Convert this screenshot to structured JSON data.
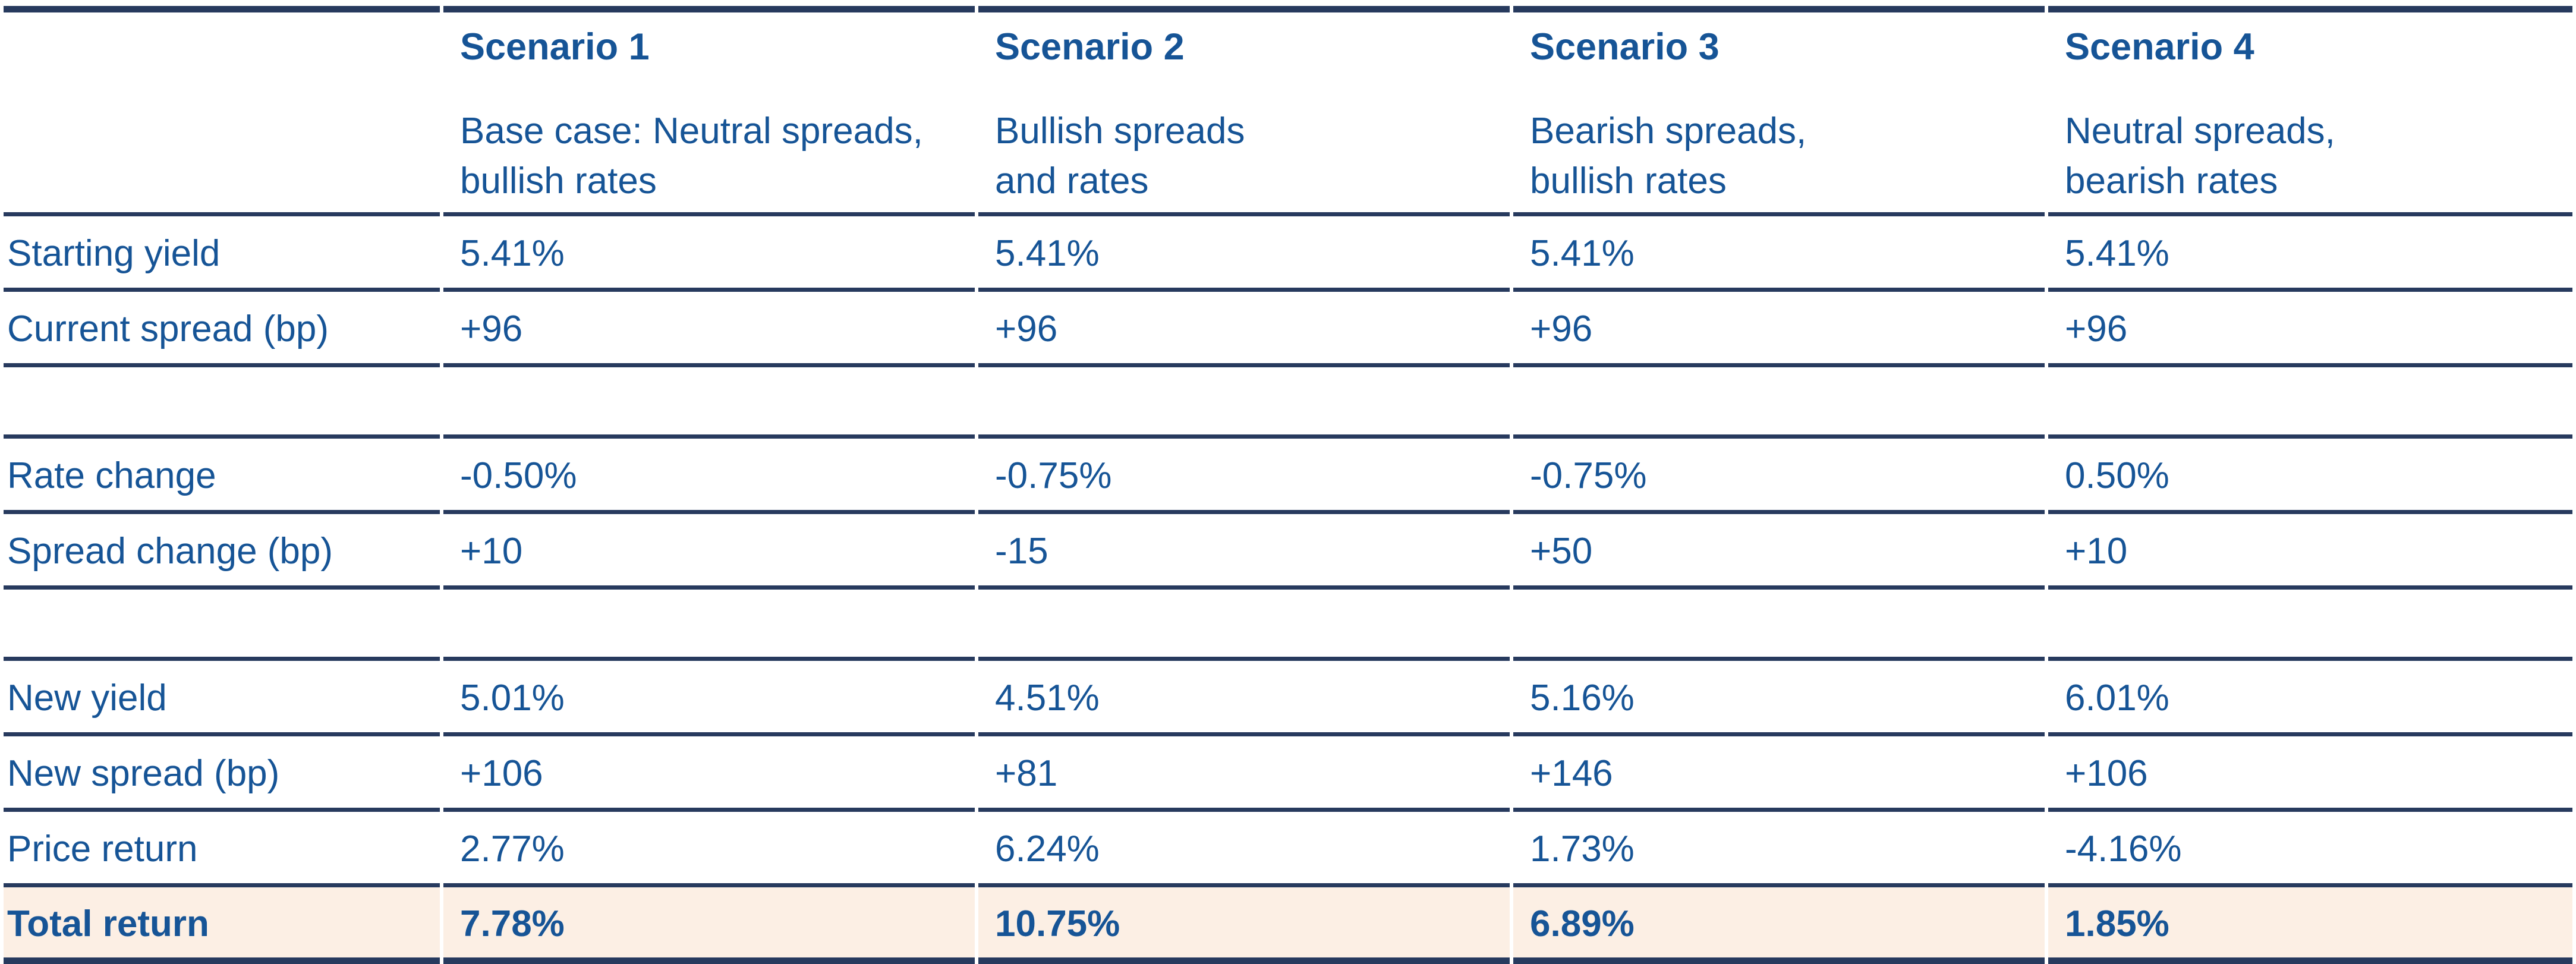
{
  "colors": {
    "rule_navy": "#273a5e",
    "text_blue": "#165496",
    "highlight_row_bg": "#fcefe4",
    "page_bg": "#ffffff"
  },
  "chart_data": {
    "type": "table",
    "title": "",
    "columns": [
      {
        "title": "",
        "desc1": "",
        "desc2": ""
      },
      {
        "title": "Scenario 1",
        "desc1": "Base case: Neutral spreads,",
        "desc2": "bullish rates"
      },
      {
        "title": "Scenario 2",
        "desc1": "Bullish spreads",
        "desc2": "and rates"
      },
      {
        "title": "Scenario 3",
        "desc1": "Bearish spreads,",
        "desc2": "bullish rates"
      },
      {
        "title": "Scenario 4",
        "desc1": "Neutral spreads,",
        "desc2": "bearish rates"
      }
    ],
    "rows": [
      {
        "label": "Starting yield",
        "values": [
          "5.41%",
          "5.41%",
          "5.41%",
          "5.41%"
        ]
      },
      {
        "label": "Current spread (bp)",
        "values": [
          "+96",
          "+96",
          "+96",
          "+96"
        ]
      },
      {
        "label": "Rate change",
        "values": [
          "-0.50%",
          "-0.75%",
          "-0.75%",
          "0.50%"
        ]
      },
      {
        "label": "Spread change (bp)",
        "values": [
          "+10",
          "-15",
          "+50",
          "+10"
        ]
      },
      {
        "label": "New yield",
        "values": [
          "5.01%",
          "4.51%",
          "5.16%",
          "6.01%"
        ]
      },
      {
        "label": "New spread (bp)",
        "values": [
          "+106",
          "+81",
          "+146",
          "+106"
        ]
      },
      {
        "label": "Price return",
        "values": [
          "2.77%",
          "6.24%",
          "1.73%",
          "-4.16%"
        ]
      },
      {
        "label": "Total return",
        "values": [
          "7.78%",
          "10.75%",
          "6.89%",
          "1.85%"
        ]
      }
    ],
    "layout": {
      "blank_separator_after_rows": [
        "Current spread (bp)",
        "Spread change (bp)"
      ],
      "highlight_row": "Total return",
      "grid": "horizontal-rules-only"
    }
  }
}
